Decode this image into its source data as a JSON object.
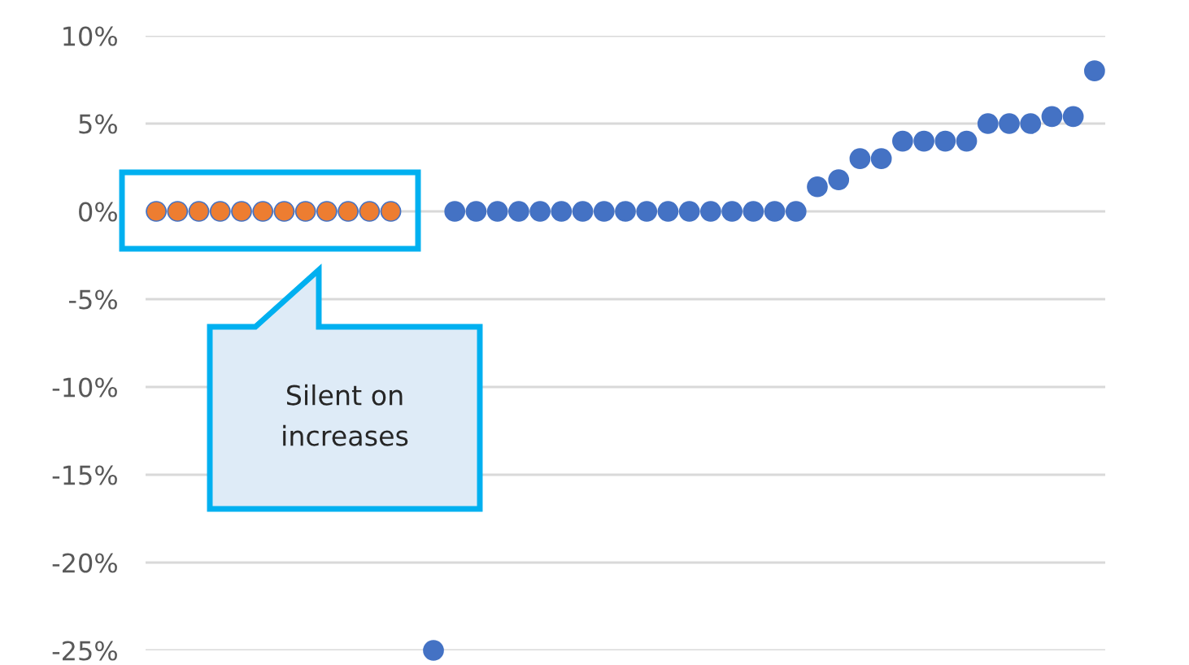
{
  "chart_data": {
    "type": "scatter",
    "categories": [
      null,
      null,
      null,
      null,
      null,
      null,
      null,
      null,
      null,
      null,
      null,
      null,
      null,
      null,
      null,
      null,
      null,
      null,
      null,
      null,
      null,
      null,
      null,
      null,
      null,
      null,
      null,
      null,
      null,
      null,
      null,
      null,
      null,
      null,
      null,
      null,
      null,
      null,
      null,
      null,
      null,
      null,
      null,
      null,
      null
    ],
    "series": [
      {
        "color": "#ed7d31",
        "values": [
          0,
          0,
          0,
          0,
          0,
          0,
          0,
          0,
          0,
          0,
          0,
          0,
          null,
          null,
          null,
          null,
          null,
          null,
          null,
          null,
          null,
          null,
          null,
          null,
          null,
          null,
          null,
          null,
          null,
          null,
          null,
          null,
          null,
          null,
          null,
          null,
          null,
          null,
          null,
          null,
          null,
          null,
          null,
          null,
          null
        ]
      },
      {
        "color": "#4472c4",
        "values": [
          null,
          null,
          null,
          null,
          null,
          null,
          null,
          null,
          null,
          null,
          null,
          null,
          null,
          -25,
          0,
          0,
          0,
          0,
          0,
          0,
          0,
          0,
          0,
          0,
          0,
          0,
          0,
          0,
          0,
          0,
          0,
          1.4,
          1.8,
          3,
          3,
          4,
          4,
          4,
          4,
          5,
          5,
          5,
          5.4,
          5.4,
          8
        ]
      }
    ],
    "ylim": [
      -25,
      10
    ],
    "yticks": [
      {
        "value": 10,
        "label": "10%"
      },
      {
        "value": 5,
        "label": "5%"
      },
      {
        "value": 0,
        "label": "0%"
      },
      {
        "value": -5,
        "label": "-5%"
      },
      {
        "value": -10,
        "label": "-10%"
      },
      {
        "value": -15,
        "label": "-15%"
      },
      {
        "value": -20,
        "label": "-20%"
      },
      {
        "value": -25,
        "label": "-25%"
      }
    ],
    "grid": "y",
    "marker": "circle",
    "tick_labels": "y",
    "annotations": [
      "Silent on\nincreases"
    ]
  }
}
